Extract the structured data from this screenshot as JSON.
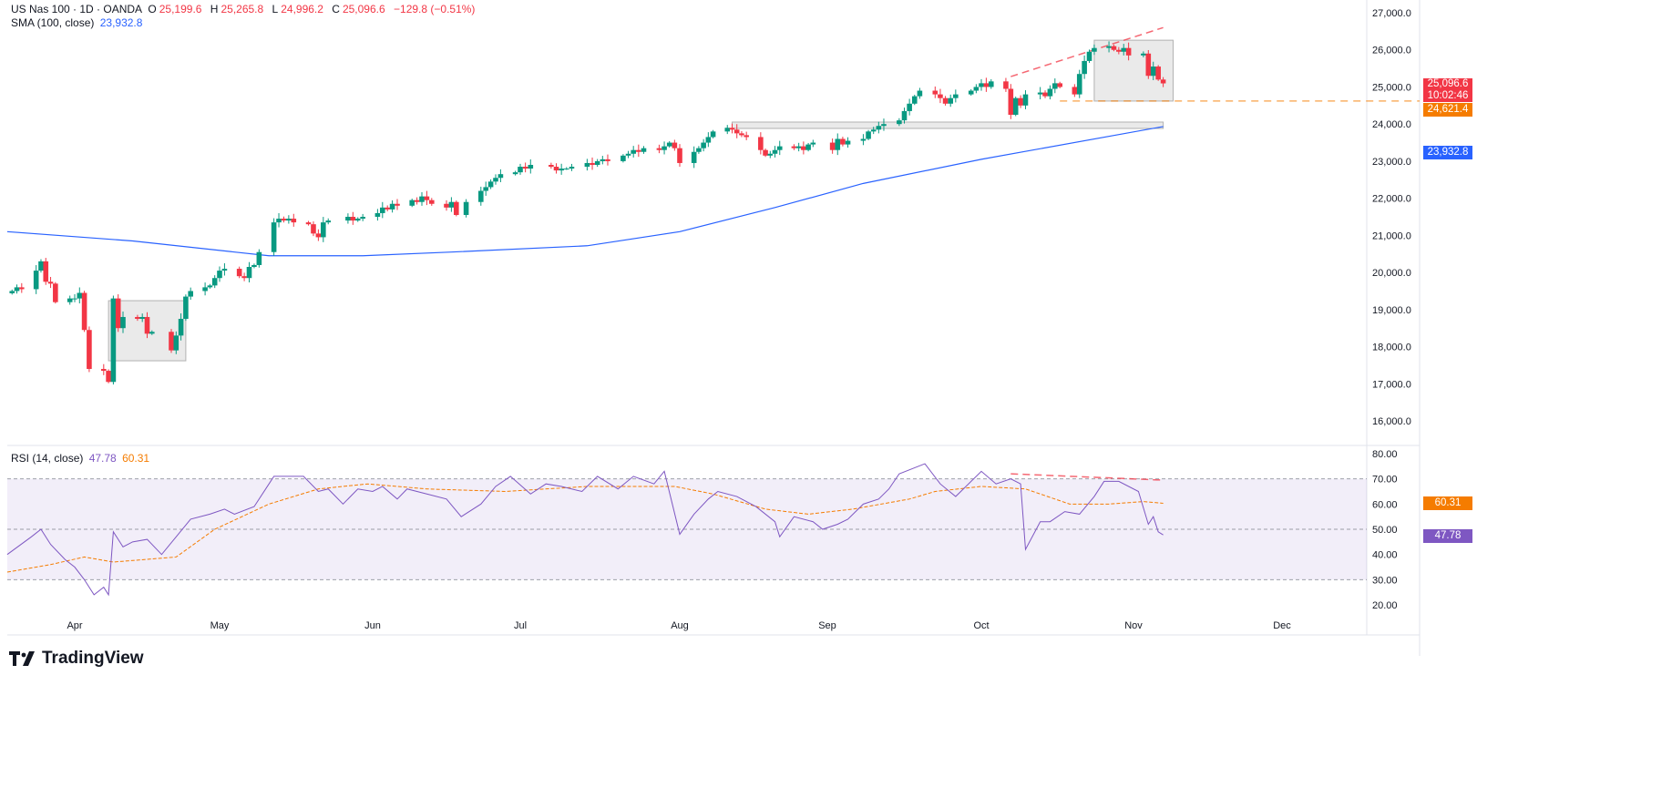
{
  "legend": {
    "symbol": "US Nas 100 · 1D · OANDA",
    "o_label": "O",
    "o": "25,199.6",
    "h_label": "H",
    "h": "25,265.8",
    "l_label": "L",
    "l": "24,996.2",
    "c_label": "C",
    "c": "25,096.6",
    "change": "−129.8 (−0.51%)",
    "sma_label": "SMA (100, close)",
    "sma_value": "23,932.8",
    "rsi_label": "RSI (14, close)",
    "rsi_value": "47.78",
    "rsi_ma_value": "60.31"
  },
  "price_labels": {
    "last": "25,096.6",
    "countdown": "10:02:46",
    "level": "24,621.4",
    "sma": "23,932.8",
    "rsi": "47.78",
    "rsi_ma": "60.31"
  },
  "brand": "TradingView",
  "colors": {
    "up": "#089981",
    "down": "#f23645",
    "sma": "#2962ff",
    "rsi": "#7e57c2",
    "rsi_ma": "#f57c00",
    "trend": "#f23645",
    "level": "#f57c00"
  },
  "chart_data": [
    {
      "type": "candlestick",
      "symbol": "US Nas 100",
      "interval": "1D",
      "ylim": [
        15700,
        27200
      ],
      "y_ticks": [
        "27,000.0",
        "26,000.0",
        "25,000.0",
        "24,000.0",
        "23,000.0",
        "22,000.0",
        "21,000.0",
        "20,000.0",
        "19,000.0",
        "18,000.0",
        "17,000.0",
        "16,000.0"
      ],
      "x_ticks": [
        {
          "label": "Apr",
          "date": "2025-04-01"
        },
        {
          "label": "May",
          "date": "2025-05-01"
        },
        {
          "label": "Jun",
          "date": "2025-06-01"
        },
        {
          "label": "Jul",
          "date": "2025-07-01"
        },
        {
          "label": "Aug",
          "date": "2025-08-01"
        },
        {
          "label": "Sep",
          "date": "2025-09-01"
        },
        {
          "label": "Oct",
          "date": "2025-10-01"
        },
        {
          "label": "Nov",
          "date": "2025-11-01"
        },
        {
          "label": "Dec",
          "date": "2025-12-01"
        }
      ],
      "first_date": "2025-03-19",
      "last_ohlc": {
        "open": 25199.6,
        "high": 25265.8,
        "low": 24996.2,
        "close": 25096.6
      },
      "closes": [
        19500,
        19600,
        19550,
        20050,
        20300,
        19750,
        19700,
        19200,
        19300,
        19300,
        19450,
        18450,
        17400,
        17350,
        17050,
        19300,
        18500,
        18800,
        18750,
        18800,
        18350,
        18400,
        17900,
        18300,
        18750,
        19350,
        19500,
        19600,
        19650,
        19850,
        20050,
        20100,
        19900,
        19850,
        20150,
        20200,
        20550,
        21350,
        21450,
        21400,
        21450,
        21350,
        21300,
        21050,
        20950,
        21350,
        21400,
        21500,
        21400,
        21450,
        21500,
        21600,
        21750,
        21700,
        21850,
        21800,
        21950,
        21900,
        22050,
        21950,
        21850,
        21750,
        21900,
        21550,
        21900,
        22200,
        22300,
        22450,
        22550,
        22650,
        22700,
        22850,
        22800,
        22900,
        22850,
        22750,
        22800,
        22800,
        22850,
        22950,
        22900,
        23000,
        23050,
        23000,
        23150,
        23200,
        23300,
        23250,
        23350,
        23300,
        23400,
        23500,
        23350,
        22950,
        23250,
        23350,
        23500,
        23650,
        23800,
        23900,
        23850,
        23750,
        23700,
        23650,
        23300,
        23150,
        23200,
        23300,
        23400,
        23350,
        23400,
        23300,
        23450,
        23500,
        23300,
        23600,
        23450,
        23550,
        23600,
        23800,
        23850,
        23950,
        24000,
        24100,
        24350,
        24550,
        24750,
        24900,
        24800,
        24700,
        24550,
        24700,
        24800,
        24900,
        25000,
        25100,
        25000,
        25150,
        24950,
        24250,
        24700,
        24500,
        24800,
        24850,
        24750,
        24950,
        25100,
        25000,
        24800,
        25350,
        25700,
        25950,
        26050,
        26100,
        26000,
        25950,
        26050,
        25850,
        25900,
        25300,
        25550,
        25199.6,
        25096.6
      ],
      "sma_100": [
        {
          "date": "2025-03-18",
          "value": 21100
        },
        {
          "date": "2025-04-13",
          "value": 20850
        },
        {
          "date": "2025-05-11",
          "value": 20450
        },
        {
          "date": "2025-05-30",
          "value": 20450
        },
        {
          "date": "2025-06-17",
          "value": 20550
        },
        {
          "date": "2025-07-14",
          "value": 20720
        },
        {
          "date": "2025-08-01",
          "value": 21100
        },
        {
          "date": "2025-08-21",
          "value": 21750
        },
        {
          "date": "2025-09-08",
          "value": 22400
        },
        {
          "date": "2025-10-01",
          "value": 23050
        },
        {
          "date": "2025-11-07",
          "value": 23932.8
        }
      ],
      "drawings": {
        "rectangles": [
          {
            "from": "2025-04-08",
            "to": "2025-04-24",
            "top": 19240,
            "bottom": 17620
          },
          {
            "from": "2025-10-24",
            "to": "2025-11-09",
            "top": 26260,
            "bottom": 24620
          },
          {
            "from": "2025-08-12",
            "to": "2025-11-07",
            "top": 24054,
            "bottom": 23882
          }
        ],
        "trendline": {
          "from": {
            "date": "2025-10-07",
            "price": 25280
          },
          "to": {
            "date": "2025-11-07",
            "price": 26600
          }
        },
        "horizontal_level": {
          "from": "2025-10-17",
          "price": 24621.4
        }
      }
    },
    {
      "type": "line",
      "indicator": "RSI (14, close)",
      "ylim": [
        15,
        83
      ],
      "y_ticks": [
        "80.00",
        "70.00",
        "60.00",
        "50.00",
        "40.00",
        "30.00",
        "20.00"
      ],
      "bands": {
        "upper": 70,
        "middle": 50,
        "lower": 30
      },
      "rsi": [
        {
          "date": "2025-03-18",
          "value": 40
        },
        {
          "date": "2025-03-23",
          "value": 47
        },
        {
          "date": "2025-03-25",
          "value": 50
        },
        {
          "date": "2025-03-27",
          "value": 44
        },
        {
          "date": "2025-03-30",
          "value": 38
        },
        {
          "date": "2025-04-01",
          "value": 35
        },
        {
          "date": "2025-04-03",
          "value": 30
        },
        {
          "date": "2025-04-05",
          "value": 24
        },
        {
          "date": "2025-04-07",
          "value": 27
        },
        {
          "date": "2025-04-08",
          "value": 24
        },
        {
          "date": "2025-04-09",
          "value": 49
        },
        {
          "date": "2025-04-11",
          "value": 43
        },
        {
          "date": "2025-04-13",
          "value": 45
        },
        {
          "date": "2025-04-16",
          "value": 46
        },
        {
          "date": "2025-04-19",
          "value": 40
        },
        {
          "date": "2025-04-22",
          "value": 47
        },
        {
          "date": "2025-04-25",
          "value": 54
        },
        {
          "date": "2025-04-29",
          "value": 56
        },
        {
          "date": "2025-05-02",
          "value": 58
        },
        {
          "date": "2025-05-04",
          "value": 56
        },
        {
          "date": "2025-05-08",
          "value": 59
        },
        {
          "date": "2025-05-11",
          "value": 68
        },
        {
          "date": "2025-05-12",
          "value": 71
        },
        {
          "date": "2025-05-18",
          "value": 71
        },
        {
          "date": "2025-05-21",
          "value": 65
        },
        {
          "date": "2025-05-23",
          "value": 66
        },
        {
          "date": "2025-05-26",
          "value": 60
        },
        {
          "date": "2025-05-29",
          "value": 66
        },
        {
          "date": "2025-06-01",
          "value": 65
        },
        {
          "date": "2025-06-03",
          "value": 67
        },
        {
          "date": "2025-06-06",
          "value": 62
        },
        {
          "date": "2025-06-08",
          "value": 66
        },
        {
          "date": "2025-06-12",
          "value": 64
        },
        {
          "date": "2025-06-16",
          "value": 62
        },
        {
          "date": "2025-06-19",
          "value": 55
        },
        {
          "date": "2025-06-23",
          "value": 60
        },
        {
          "date": "2025-06-26",
          "value": 67
        },
        {
          "date": "2025-06-29",
          "value": 71
        },
        {
          "date": "2025-07-03",
          "value": 64
        },
        {
          "date": "2025-07-06",
          "value": 68
        },
        {
          "date": "2025-07-09",
          "value": 67
        },
        {
          "date": "2025-07-13",
          "value": 65
        },
        {
          "date": "2025-07-16",
          "value": 71
        },
        {
          "date": "2025-07-20",
          "value": 66
        },
        {
          "date": "2025-07-23",
          "value": 71
        },
        {
          "date": "2025-07-27",
          "value": 68
        },
        {
          "date": "2025-07-29",
          "value": 73
        },
        {
          "date": "2025-08-01",
          "value": 48
        },
        {
          "date": "2025-08-04",
          "value": 56
        },
        {
          "date": "2025-08-07",
          "value": 62
        },
        {
          "date": "2025-08-09",
          "value": 65
        },
        {
          "date": "2025-08-13",
          "value": 63
        },
        {
          "date": "2025-08-17",
          "value": 59
        },
        {
          "date": "2025-08-21",
          "value": 53
        },
        {
          "date": "2025-08-22",
          "value": 47
        },
        {
          "date": "2025-08-25",
          "value": 55
        },
        {
          "date": "2025-08-29",
          "value": 53
        },
        {
          "date": "2025-08-31",
          "value": 50
        },
        {
          "date": "2025-09-03",
          "value": 52
        },
        {
          "date": "2025-09-05",
          "value": 54
        },
        {
          "date": "2025-09-08",
          "value": 60
        },
        {
          "date": "2025-09-11",
          "value": 62
        },
        {
          "date": "2025-09-13",
          "value": 66
        },
        {
          "date": "2025-09-15",
          "value": 72
        },
        {
          "date": "2025-09-20",
          "value": 76
        },
        {
          "date": "2025-09-23",
          "value": 68
        },
        {
          "date": "2025-09-26",
          "value": 63
        },
        {
          "date": "2025-09-28",
          "value": 67
        },
        {
          "date": "2025-10-01",
          "value": 73
        },
        {
          "date": "2025-10-04",
          "value": 68
        },
        {
          "date": "2025-10-07",
          "value": 70
        },
        {
          "date": "2025-10-09",
          "value": 68
        },
        {
          "date": "2025-10-10",
          "value": 42
        },
        {
          "date": "2025-10-13",
          "value": 53
        },
        {
          "date": "2025-10-15",
          "value": 53
        },
        {
          "date": "2025-10-18",
          "value": 57
        },
        {
          "date": "2025-10-21",
          "value": 56
        },
        {
          "date": "2025-10-24",
          "value": 63
        },
        {
          "date": "2025-10-26",
          "value": 69
        },
        {
          "date": "2025-10-29",
          "value": 69
        },
        {
          "date": "2025-11-02",
          "value": 65
        },
        {
          "date": "2025-11-04",
          "value": 52
        },
        {
          "date": "2025-11-05",
          "value": 55
        },
        {
          "date": "2025-11-06",
          "value": 49
        },
        {
          "date": "2025-11-07",
          "value": 47.78
        }
      ],
      "rsi_ma": [
        {
          "date": "2025-03-18",
          "value": 33
        },
        {
          "date": "2025-03-27",
          "value": 36
        },
        {
          "date": "2025-04-03",
          "value": 39
        },
        {
          "date": "2025-04-09",
          "value": 37
        },
        {
          "date": "2025-04-22",
          "value": 39
        },
        {
          "date": "2025-04-30",
          "value": 50
        },
        {
          "date": "2025-05-11",
          "value": 60
        },
        {
          "date": "2025-05-21",
          "value": 66
        },
        {
          "date": "2025-05-31",
          "value": 68
        },
        {
          "date": "2025-06-12",
          "value": 66
        },
        {
          "date": "2025-06-28",
          "value": 65
        },
        {
          "date": "2025-07-14",
          "value": 67
        },
        {
          "date": "2025-07-31",
          "value": 67
        },
        {
          "date": "2025-08-08",
          "value": 64
        },
        {
          "date": "2025-08-19",
          "value": 58
        },
        {
          "date": "2025-08-28",
          "value": 56
        },
        {
          "date": "2025-09-06",
          "value": 58
        },
        {
          "date": "2025-09-17",
          "value": 62
        },
        {
          "date": "2025-09-22",
          "value": 65
        },
        {
          "date": "2025-10-01",
          "value": 67
        },
        {
          "date": "2025-10-10",
          "value": 66
        },
        {
          "date": "2025-10-19",
          "value": 60
        },
        {
          "date": "2025-10-27",
          "value": 60
        },
        {
          "date": "2025-11-03",
          "value": 61
        },
        {
          "date": "2025-11-07",
          "value": 60.31
        }
      ],
      "trendline": {
        "from": {
          "date": "2025-10-07",
          "value": 72
        },
        "to": {
          "date": "2025-11-07",
          "value": 69.5
        }
      }
    }
  ]
}
